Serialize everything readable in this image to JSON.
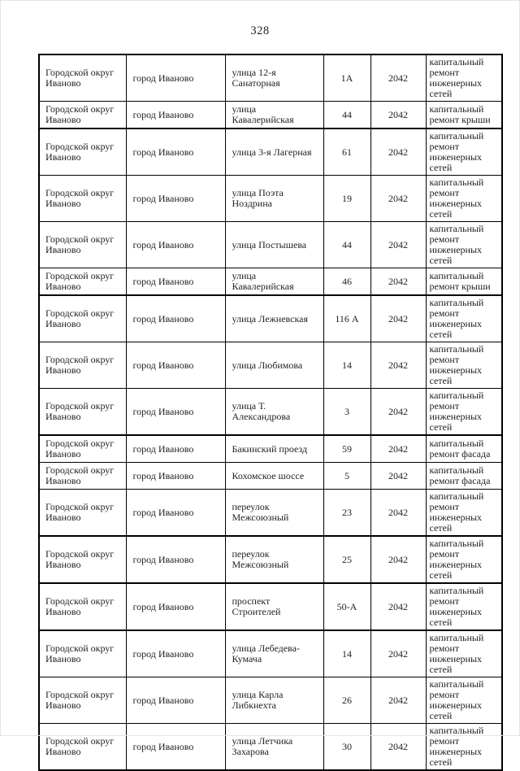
{
  "page": {
    "number": "328"
  },
  "table": {
    "rows": [
      {
        "district": "Городской округ Иваново",
        "city": "город Иваново",
        "street": "улица 12-я Санаторная",
        "house": "1А",
        "year": "2042",
        "work": "капитальный ремонт инженерных сетей"
      },
      {
        "district": "Городской округ Иваново",
        "city": "город Иваново",
        "street": "улица Кавалерийская",
        "house": "44",
        "year": "2042",
        "work": "капитальный ремонт крыши"
      },
      {
        "district": "Городской округ Иваново",
        "city": "город Иваново",
        "street": "улица 3-я Лагерная",
        "house": "61",
        "year": "2042",
        "work": "капитальный ремонт инженерных сетей"
      },
      {
        "district": "Городской округ Иваново",
        "city": "город Иваново",
        "street": "улица Поэта Ноздрина",
        "house": "19",
        "year": "2042",
        "work": "капитальный ремонт инженерных сетей"
      },
      {
        "district": "Городской округ Иваново",
        "city": "город Иваново",
        "street": "улица Постышева",
        "house": "44",
        "year": "2042",
        "work": "капитальный ремонт инженерных сетей"
      },
      {
        "district": "Городской округ Иваново",
        "city": "город Иваново",
        "street": "улица Кавалерийская",
        "house": "46",
        "year": "2042",
        "work": "капитальный ремонт крыши"
      },
      {
        "district": "Городской округ Иваново",
        "city": "город Иваново",
        "street": "улица Лежневская",
        "house": "116 А",
        "year": "2042",
        "work": "капитальный ремонт инженерных сетей"
      },
      {
        "district": "Городской округ Иваново",
        "city": "город Иваново",
        "street": "улица Любимова",
        "house": "14",
        "year": "2042",
        "work": "капитальный ремонт инженерных сетей"
      },
      {
        "district": "Городской округ Иваново",
        "city": "город Иваново",
        "street": "улица Т. Александрова",
        "house": "3",
        "year": "2042",
        "work": "капитальный ремонт инженерных сетей"
      },
      {
        "district": "Городской округ Иваново",
        "city": "город Иваново",
        "street": "Бакинский проезд",
        "house": "59",
        "year": "2042",
        "work": "капитальный ремонт фасада"
      },
      {
        "district": "Городской округ Иваново",
        "city": "город Иваново",
        "street": "Кохомское шоссе",
        "house": "5",
        "year": "2042",
        "work": "капитальный ремонт фасада"
      },
      {
        "district": "Городской округ Иваново",
        "city": "город Иваново",
        "street": "переулок Межсоюзный",
        "house": "23",
        "year": "2042",
        "work": "капитальный ремонт инженерных сетей"
      },
      {
        "district": "Городской округ Иваново",
        "city": "город Иваново",
        "street": "переулок Межсоюзный",
        "house": "25",
        "year": "2042",
        "work": "капитальный ремонт инженерных сетей"
      },
      {
        "district": "Городской округ Иваново",
        "city": "город Иваново",
        "street": "проспект Строителей",
        "house": "50-А",
        "year": "2042",
        "work": "капитальный ремонт инженерных сетей"
      },
      {
        "district": "Городской округ Иваново",
        "city": "город Иваново",
        "street": "улица Лебедева-Кумача",
        "house": "14",
        "year": "2042",
        "work": "капитальный ремонт инженерных сетей"
      },
      {
        "district": "Городской округ Иваново",
        "city": "город Иваново",
        "street": "улица Карла Либкнехта",
        "house": "26",
        "year": "2042",
        "work": "капитальный ремонт инженерных сетей"
      },
      {
        "district": "Городской округ Иваново",
        "city": "город Иваново",
        "street": "улица Летчика Захарова",
        "house": "30",
        "year": "2042",
        "work": "капитальный ремонт инженерных сетей"
      }
    ]
  }
}
